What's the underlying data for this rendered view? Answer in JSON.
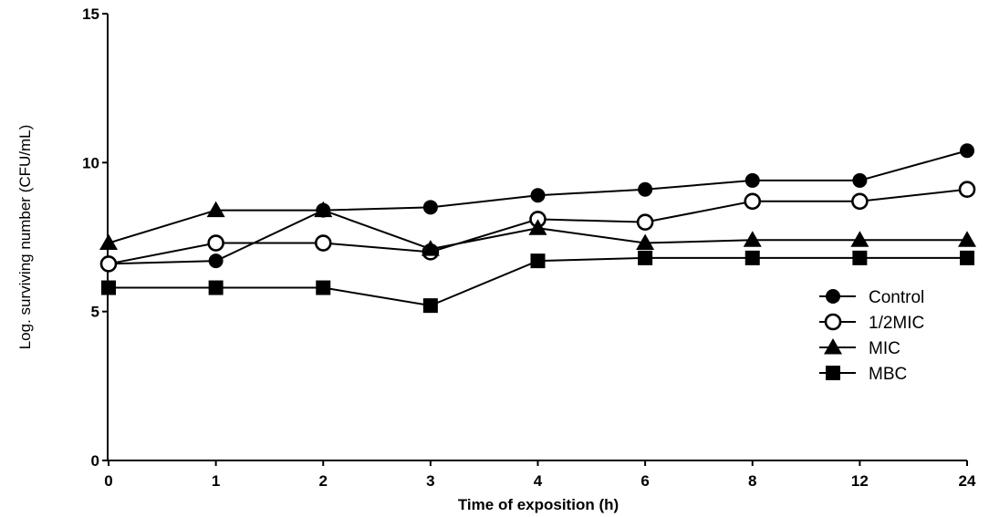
{
  "chart_data": {
    "type": "line",
    "xlabel": "Time of exposition (h)",
    "ylabel": "Log. surviving number (CFU/mL)",
    "categories": [
      "0",
      "1",
      "2",
      "3",
      "4",
      "6",
      "8",
      "12",
      "24"
    ],
    "ylim": [
      0,
      15
    ],
    "yticks": [
      "0",
      "5",
      "10",
      "15"
    ],
    "legend_position": "right",
    "series": [
      {
        "name": "Control",
        "marker": "filled-circle",
        "values": [
          6.6,
          6.7,
          8.4,
          8.5,
          8.9,
          9.1,
          9.4,
          9.4,
          10.4
        ]
      },
      {
        "name": "1/2MIC",
        "marker": "open-circle",
        "values": [
          6.6,
          7.3,
          7.3,
          7.0,
          8.1,
          8.0,
          8.7,
          8.7,
          9.1
        ]
      },
      {
        "name": "MIC",
        "marker": "filled-triangle",
        "values": [
          7.3,
          8.4,
          8.4,
          7.1,
          7.8,
          7.3,
          7.4,
          7.4,
          7.4
        ]
      },
      {
        "name": "MBC",
        "marker": "filled-square",
        "values": [
          5.8,
          5.8,
          5.8,
          5.2,
          6.7,
          6.8,
          6.8,
          6.8,
          6.8
        ]
      }
    ],
    "colors": {
      "line": "#000000",
      "marker": "#000000",
      "background": "#ffffff"
    }
  }
}
